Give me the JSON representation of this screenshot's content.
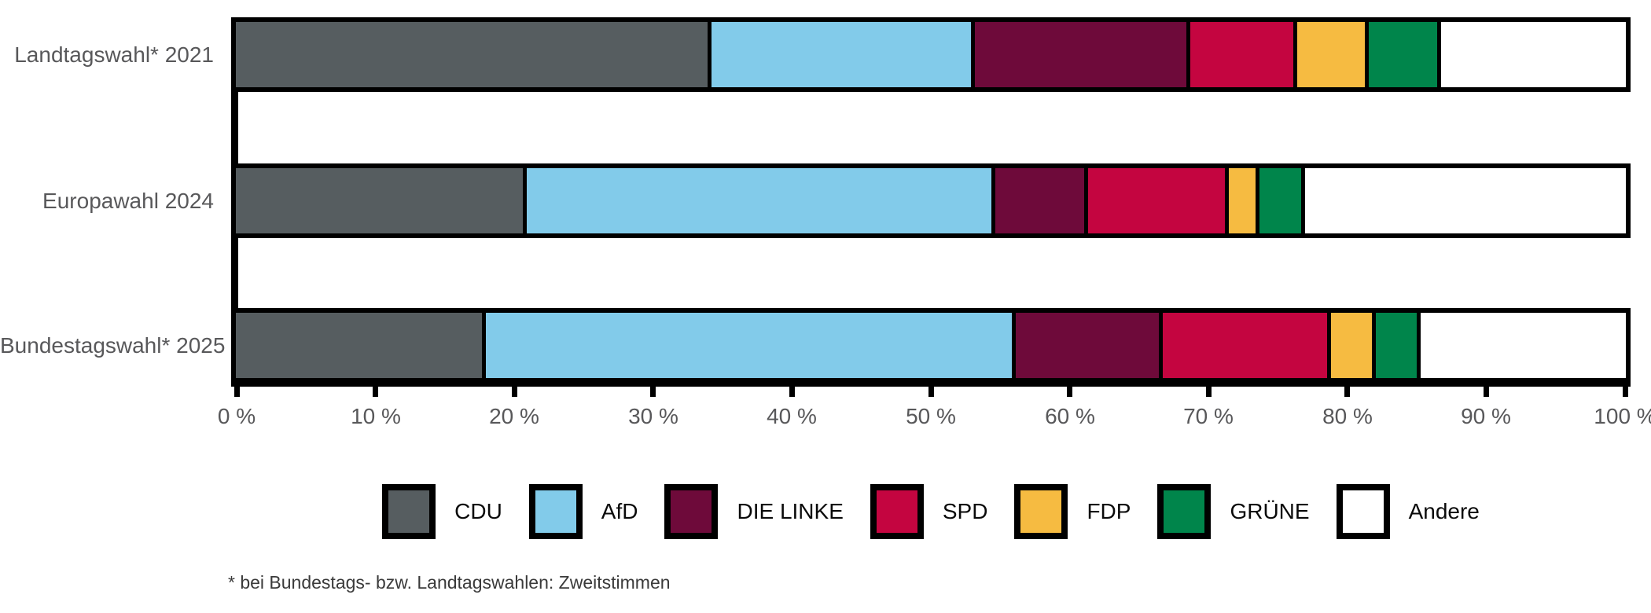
{
  "chart_data": {
    "type": "bar",
    "orientation": "horizontal-stacked",
    "title": "",
    "xlabel": "",
    "ylabel": "",
    "unit": "%",
    "xlim": [
      0,
      100
    ],
    "grid": false,
    "legend_position": "bottom",
    "categories": [
      "Landtagswahl* 2021",
      "Europawahl 2024",
      "Bundestagswahl* 2025"
    ],
    "series": [
      {
        "name": "CDU",
        "color": "#565d60",
        "values": [
          34.5,
          21.0,
          18.0
        ]
      },
      {
        "name": "AfD",
        "color": "#82cbea",
        "values": [
          19.0,
          34.0,
          38.5
        ]
      },
      {
        "name": "DIE LINKE",
        "color": "#6e0a3a",
        "values": [
          15.5,
          6.5,
          10.5
        ]
      },
      {
        "name": "SPD",
        "color": "#c40540",
        "values": [
          7.5,
          10.0,
          12.0
        ]
      },
      {
        "name": "FDP",
        "color": "#f6bb41",
        "values": [
          5.0,
          2.0,
          3.0
        ]
      },
      {
        "name": "GRÜNE",
        "color": "#00854b",
        "values": [
          5.0,
          3.0,
          3.0
        ]
      },
      {
        "name": "Andere",
        "color": "#ffffff",
        "values": [
          13.5,
          23.5,
          15.0
        ]
      }
    ],
    "x_tick_labels": [
      "0 %",
      "10 %",
      "20 %",
      "30 %",
      "40 %",
      "50 %",
      "60 %",
      "70 %",
      "80 %",
      "90 %",
      "100 %"
    ],
    "footnote": "* bei Bundestags- bzw. Landtagswahlen: Zweitstimmen",
    "axis_color": "#000000",
    "label_color": "#58585a"
  }
}
